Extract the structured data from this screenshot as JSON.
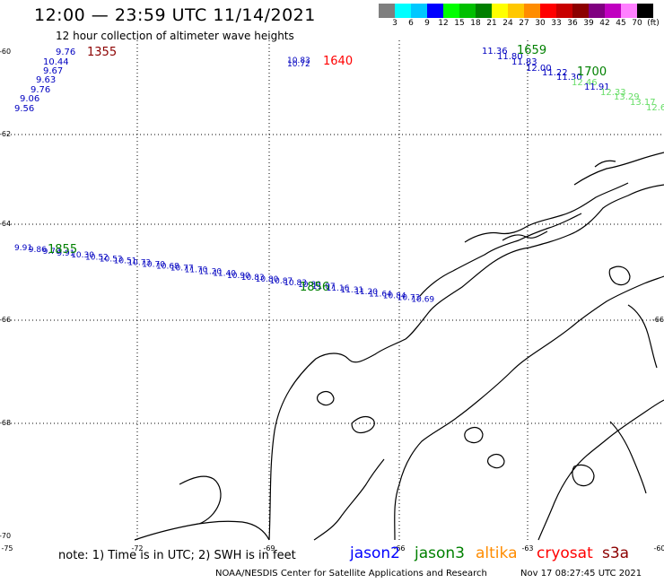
{
  "header": {
    "title": "12:00 — 23:59 UTC 11/14/2021",
    "subtitle": "12 hour collection of altimeter wave heights"
  },
  "scale": {
    "colors": [
      "#7f7f7f",
      "#00ffff",
      "#00c8ff",
      "#0000ff",
      "#00ff00",
      "#00c000",
      "#008000",
      "#ffff00",
      "#ffc800",
      "#ff8c00",
      "#ff0000",
      "#c80000",
      "#8c0000",
      "#800080",
      "#c000c0",
      "#ff80ff",
      "#000000"
    ],
    "ticks": [
      "3",
      "6",
      "9",
      "12",
      "15",
      "18",
      "21",
      "24",
      "27",
      "30",
      "33",
      "36",
      "39",
      "42",
      "45",
      "70",
      "(ft)"
    ]
  },
  "axes": {
    "lat_labels": [
      "-60",
      "-62",
      "-64",
      "-66",
      "-68",
      "-70"
    ],
    "lon_labels": [
      "-75",
      "-72",
      "-69",
      "-66",
      "-63",
      "-60"
    ],
    "right_edge_label": "-66"
  },
  "tracks": {
    "track1": {
      "time": "1355",
      "time_color": "#8c0000",
      "values": [
        "9.76",
        "10.44",
        "9.67",
        "9.63",
        "9.76",
        "9.06",
        "9.56"
      ],
      "value_color": "#0000c0"
    },
    "track2": {
      "time": "1640",
      "time_color": "#ff0000",
      "values": [
        "10.83",
        "10.72"
      ],
      "value_color": "#0000c0"
    },
    "track3": {
      "times": [
        "1659",
        "1700"
      ],
      "time_color": "#008000",
      "values": [
        "11.36",
        "11.80",
        "11.83",
        "12.00",
        "11.22",
        "11.30",
        "12.46",
        "11.91",
        "12.33",
        "13.29",
        "13.17",
        "12.6"
      ],
      "value_colors": [
        "#0000c0",
        "#0000c0",
        "#0000c0",
        "#0000c0",
        "#0000c0",
        "#0000c0",
        "#66dd66",
        "#0000c0",
        "#66dd66",
        "#66dd66",
        "#66dd66",
        "#66dd66"
      ]
    },
    "track4": {
      "times": [
        "1855",
        "1856"
      ],
      "time_color": "#008000",
      "values": [
        "9.91",
        "9.86",
        "9.70",
        "9.91",
        "10.30",
        "10.52",
        "10.53",
        "10.51",
        "10.73",
        "10.70",
        "10.68",
        "10.77",
        "11.70",
        "11.20",
        "11.40",
        "10.90",
        "10.83",
        "10.80",
        "10.87",
        "10.83",
        "10.80",
        "11.07",
        "11.16",
        "11.31",
        "11.20",
        "11.64",
        "10.84",
        "10.73",
        "10.69"
      ],
      "value_color": "#0000c0"
    }
  },
  "footer": {
    "note": "note:  1) Time is in UTC;  2) SWH is in feet",
    "satellites": [
      {
        "name": "jason2",
        "color": "#0000ff"
      },
      {
        "name": "jason3",
        "color": "#008000"
      },
      {
        "name": "altika",
        "color": "#ff8c00"
      },
      {
        "name": "cryosat",
        "color": "#ff0000"
      },
      {
        "name": "s3a",
        "color": "#8c0000"
      }
    ],
    "credit": "NOAA/NESDIS Center for Satellite Applications and Research",
    "timestamp": "Nov 17 08:27:45 UTC 2021"
  }
}
